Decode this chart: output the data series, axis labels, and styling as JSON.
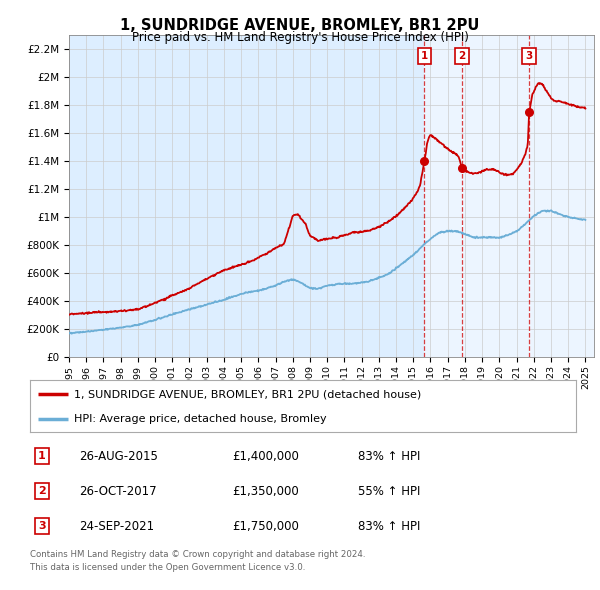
{
  "title": "1, SUNDRIDGE AVENUE, BROMLEY, BR1 2PU",
  "subtitle": "Price paid vs. HM Land Registry's House Price Index (HPI)",
  "footer_line1": "Contains HM Land Registry data © Crown copyright and database right 2024.",
  "footer_line2": "This data is licensed under the Open Government Licence v3.0.",
  "legend_line1": "1, SUNDRIDGE AVENUE, BROMLEY, BR1 2PU (detached house)",
  "legend_line2": "HPI: Average price, detached house, Bromley",
  "sales": [
    {
      "num": 1,
      "date": "26-AUG-2015",
      "price": 1400000,
      "pct": "83%",
      "year": 2015.65
    },
    {
      "num": 2,
      "date": "26-OCT-2017",
      "price": 1350000,
      "pct": "55%",
      "year": 2017.82
    },
    {
      "num": 3,
      "date": "24-SEP-2021",
      "price": 1750000,
      "pct": "83%",
      "year": 2021.73
    }
  ],
  "hpi_color": "#6baed6",
  "price_color": "#cc0000",
  "chart_bg_color": "#ddeeff",
  "plot_bg_color": "#ffffff",
  "grid_color": "#cccccc",
  "ylim": [
    0,
    2300000
  ],
  "xlim_start": 1995.0,
  "xlim_end": 2025.5,
  "ytick_values": [
    0,
    200000,
    400000,
    600000,
    800000,
    1000000,
    1200000,
    1400000,
    1600000,
    1800000,
    2000000,
    2200000
  ],
  "ytick_labels": [
    "£0",
    "£200K",
    "£400K",
    "£600K",
    "£800K",
    "£1M",
    "£1.2M",
    "£1.4M",
    "£1.6M",
    "£1.8M",
    "£2M",
    "£2.2M"
  ],
  "xtick_values": [
    1995,
    1996,
    1997,
    1998,
    1999,
    2000,
    2001,
    2002,
    2003,
    2004,
    2005,
    2006,
    2007,
    2008,
    2009,
    2010,
    2011,
    2012,
    2013,
    2014,
    2015,
    2016,
    2017,
    2018,
    2019,
    2020,
    2021,
    2022,
    2023,
    2024,
    2025
  ],
  "hpi_keypoints": [
    [
      1995.0,
      170000
    ],
    [
      1996.0,
      180000
    ],
    [
      1997.0,
      195000
    ],
    [
      1998.0,
      210000
    ],
    [
      1999.0,
      230000
    ],
    [
      2000.0,
      265000
    ],
    [
      2001.0,
      305000
    ],
    [
      2002.0,
      340000
    ],
    [
      2003.0,
      375000
    ],
    [
      2004.0,
      410000
    ],
    [
      2005.0,
      450000
    ],
    [
      2005.5,
      465000
    ],
    [
      2006.0,
      475000
    ],
    [
      2006.5,
      490000
    ],
    [
      2007.0,
      510000
    ],
    [
      2007.5,
      540000
    ],
    [
      2008.0,
      555000
    ],
    [
      2008.5,
      530000
    ],
    [
      2009.0,
      490000
    ],
    [
      2009.5,
      490000
    ],
    [
      2010.0,
      510000
    ],
    [
      2010.5,
      520000
    ],
    [
      2011.0,
      525000
    ],
    [
      2011.5,
      525000
    ],
    [
      2012.0,
      530000
    ],
    [
      2012.5,
      545000
    ],
    [
      2013.0,
      565000
    ],
    [
      2013.5,
      590000
    ],
    [
      2014.0,
      635000
    ],
    [
      2014.5,
      680000
    ],
    [
      2015.0,
      730000
    ],
    [
      2015.5,
      790000
    ],
    [
      2016.0,
      845000
    ],
    [
      2016.5,
      890000
    ],
    [
      2017.0,
      900000
    ],
    [
      2017.5,
      900000
    ],
    [
      2018.0,
      880000
    ],
    [
      2018.5,
      855000
    ],
    [
      2019.0,
      855000
    ],
    [
      2019.5,
      855000
    ],
    [
      2020.0,
      855000
    ],
    [
      2020.5,
      870000
    ],
    [
      2021.0,
      900000
    ],
    [
      2021.5,
      950000
    ],
    [
      2022.0,
      1010000
    ],
    [
      2022.5,
      1045000
    ],
    [
      2023.0,
      1045000
    ],
    [
      2023.5,
      1020000
    ],
    [
      2024.0,
      1000000
    ],
    [
      2024.5,
      990000
    ],
    [
      2025.0,
      980000
    ]
  ],
  "red_keypoints": [
    [
      1995.0,
      305000
    ],
    [
      1996.0,
      315000
    ],
    [
      1997.0,
      320000
    ],
    [
      1998.0,
      330000
    ],
    [
      1999.0,
      340000
    ],
    [
      2000.0,
      385000
    ],
    [
      2001.0,
      440000
    ],
    [
      2002.0,
      490000
    ],
    [
      2003.0,
      560000
    ],
    [
      2004.0,
      620000
    ],
    [
      2005.0,
      660000
    ],
    [
      2005.5,
      680000
    ],
    [
      2006.0,
      710000
    ],
    [
      2006.5,
      740000
    ],
    [
      2007.0,
      780000
    ],
    [
      2007.5,
      810000
    ],
    [
      2008.0,
      1010000
    ],
    [
      2008.3,
      1020000
    ],
    [
      2008.7,
      960000
    ],
    [
      2009.0,
      870000
    ],
    [
      2009.5,
      830000
    ],
    [
      2010.0,
      845000
    ],
    [
      2010.5,
      855000
    ],
    [
      2011.0,
      870000
    ],
    [
      2011.5,
      890000
    ],
    [
      2012.0,
      895000
    ],
    [
      2012.5,
      905000
    ],
    [
      2013.0,
      930000
    ],
    [
      2013.5,
      965000
    ],
    [
      2014.0,
      1010000
    ],
    [
      2014.3,
      1040000
    ],
    [
      2014.6,
      1080000
    ],
    [
      2014.9,
      1120000
    ],
    [
      2015.2,
      1170000
    ],
    [
      2015.4,
      1230000
    ],
    [
      2015.65,
      1400000
    ],
    [
      2015.8,
      1520000
    ],
    [
      2015.9,
      1570000
    ],
    [
      2016.0,
      1590000
    ],
    [
      2016.1,
      1580000
    ],
    [
      2016.3,
      1560000
    ],
    [
      2016.5,
      1540000
    ],
    [
      2016.8,
      1510000
    ],
    [
      2017.0,
      1490000
    ],
    [
      2017.2,
      1470000
    ],
    [
      2017.5,
      1450000
    ],
    [
      2017.65,
      1430000
    ],
    [
      2017.82,
      1350000
    ],
    [
      2018.0,
      1330000
    ],
    [
      2018.2,
      1320000
    ],
    [
      2018.5,
      1310000
    ],
    [
      2018.8,
      1320000
    ],
    [
      2019.0,
      1330000
    ],
    [
      2019.3,
      1340000
    ],
    [
      2019.6,
      1340000
    ],
    [
      2019.9,
      1330000
    ],
    [
      2020.2,
      1310000
    ],
    [
      2020.5,
      1300000
    ],
    [
      2020.8,
      1310000
    ],
    [
      2021.0,
      1340000
    ],
    [
      2021.3,
      1390000
    ],
    [
      2021.5,
      1450000
    ],
    [
      2021.65,
      1510000
    ],
    [
      2021.73,
      1750000
    ],
    [
      2021.9,
      1870000
    ],
    [
      2022.1,
      1930000
    ],
    [
      2022.3,
      1960000
    ],
    [
      2022.5,
      1950000
    ],
    [
      2022.7,
      1910000
    ],
    [
      2022.9,
      1870000
    ],
    [
      2023.1,
      1840000
    ],
    [
      2023.3,
      1830000
    ],
    [
      2023.5,
      1830000
    ],
    [
      2023.8,
      1820000
    ],
    [
      2024.0,
      1810000
    ],
    [
      2024.3,
      1800000
    ],
    [
      2024.6,
      1790000
    ],
    [
      2025.0,
      1780000
    ]
  ]
}
